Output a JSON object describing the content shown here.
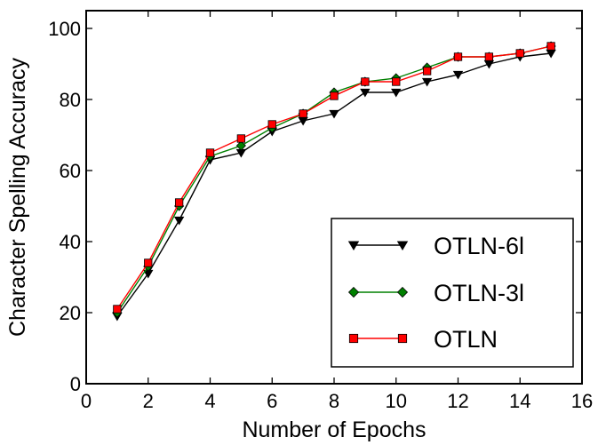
{
  "chart_data": {
    "type": "line",
    "title": "",
    "xlabel": "Number of Epochs",
    "ylabel": "Character Spelling Accuracy",
    "xlim": [
      0,
      16
    ],
    "ylim": [
      0,
      105
    ],
    "xticks": [
      "0",
      "2",
      "4",
      "6",
      "8",
      "10",
      "12",
      "14",
      "16"
    ],
    "yticks": [
      "0",
      "20",
      "40",
      "60",
      "80",
      "100"
    ],
    "x": [
      1,
      2,
      3,
      4,
      5,
      6,
      7,
      8,
      9,
      10,
      11,
      12,
      13,
      14,
      15
    ],
    "series": [
      {
        "name": "OTLN-6l",
        "color": "#000000",
        "marker": "triangle-down",
        "values": [
          19,
          31,
          46,
          63,
          65,
          71,
          74,
          76,
          82,
          82,
          85,
          87,
          90,
          92,
          93
        ]
      },
      {
        "name": "OTLN-3l",
        "color": "#008000",
        "marker": "diamond",
        "values": [
          20,
          33,
          50,
          64,
          67,
          72,
          76,
          82,
          85,
          86,
          89,
          92,
          92,
          93,
          95
        ]
      },
      {
        "name": "OTLN",
        "color": "#ff0000",
        "marker": "square",
        "values": [
          21,
          34,
          51,
          65,
          69,
          73,
          76,
          81,
          85,
          85,
          88,
          92,
          92,
          93,
          95
        ]
      }
    ],
    "grid": false,
    "legend_position": "lower-right"
  }
}
